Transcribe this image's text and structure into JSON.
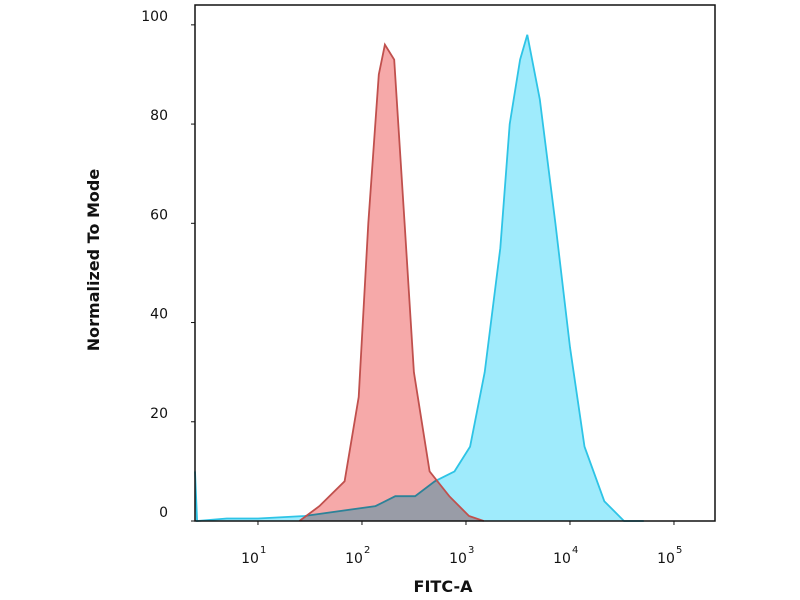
{
  "chart_data": {
    "type": "histogram-overlay",
    "x_label": "FITC-A",
    "y_label": "Normalized To Mode",
    "log_x": true,
    "xlim": [
      2.48,
      248000
    ],
    "xticks": [
      {
        "value": 10,
        "label": "10",
        "sup": "1"
      },
      {
        "value": 100,
        "label": "10",
        "sup": "2"
      },
      {
        "value": 1000,
        "label": "10",
        "sup": "3"
      },
      {
        "value": 10000,
        "label": "10",
        "sup": "4"
      },
      {
        "value": 100000,
        "label": "10",
        "sup": "5"
      }
    ],
    "ylim": [
      0,
      104
    ],
    "yticks": [
      0,
      20,
      40,
      60,
      80,
      100
    ],
    "series": [
      {
        "color": "#2ec4e6",
        "fill": "#8ee8fb",
        "x": [
          2.48,
          2.6,
          5,
          10,
          28,
          135,
          209,
          324,
          501,
          776,
          1096,
          1514,
          2138,
          2630,
          3311,
          3890,
          5129,
          7244,
          10000,
          13800,
          21400,
          33100,
          51300
        ],
        "values": [
          10,
          0,
          0.5,
          0.5,
          1,
          3,
          5,
          5,
          8,
          10,
          15,
          30,
          55,
          80,
          93,
          98,
          85,
          60,
          35,
          15,
          4,
          0,
          0
        ]
      },
      {
        "color": "#c0504d",
        "fill": "#f59a9a",
        "x": [
          25,
          39,
          68,
          93,
          115,
          145,
          166,
          204,
          257,
          316,
          447,
          692,
          1070,
          1480
        ],
        "values": [
          0,
          3,
          8,
          25,
          60,
          90,
          96,
          93,
          60,
          30,
          10,
          5,
          1,
          0
        ]
      }
    ]
  }
}
